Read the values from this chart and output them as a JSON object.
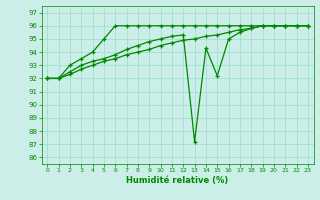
{
  "title": "",
  "xlabel": "Humidité relative (%)",
  "ylabel": "",
  "bg_color": "#cceee8",
  "grid_color": "#99ddcc",
  "line_color": "#008800",
  "xlim": [
    -0.5,
    23.5
  ],
  "ylim": [
    85.5,
    97.5
  ],
  "yticks": [
    86,
    87,
    88,
    89,
    90,
    91,
    92,
    93,
    94,
    95,
    96,
    97
  ],
  "xticks": [
    0,
    1,
    2,
    3,
    4,
    5,
    6,
    7,
    8,
    9,
    10,
    11,
    12,
    13,
    14,
    15,
    16,
    17,
    18,
    19,
    20,
    21,
    22,
    23
  ],
  "line1_x": [
    0,
    1,
    2,
    3,
    4,
    5,
    6,
    7,
    8,
    9,
    10,
    11,
    12,
    13,
    14,
    15,
    16,
    17,
    18,
    19,
    20,
    21,
    22,
    23
  ],
  "line1_y": [
    92,
    92,
    93,
    93.5,
    94,
    95,
    96,
    96,
    96,
    96,
    96,
    96,
    96,
    96,
    96,
    96,
    96,
    96,
    96,
    96,
    96,
    96,
    96,
    96
  ],
  "line2_x": [
    0,
    1,
    2,
    3,
    4,
    5,
    6,
    7,
    8,
    9,
    10,
    11,
    12,
    13,
    14,
    15,
    16,
    17,
    18,
    19,
    20,
    21,
    22,
    23
  ],
  "line2_y": [
    92,
    92,
    92.5,
    93,
    93.3,
    93.5,
    93.8,
    94.2,
    94.5,
    94.8,
    95.0,
    95.2,
    95.3,
    87.2,
    94.3,
    92.2,
    95.0,
    95.5,
    95.8,
    96.0,
    96.0,
    96.0,
    96.0,
    96.0
  ],
  "line3_x": [
    0,
    1,
    2,
    3,
    4,
    5,
    6,
    7,
    8,
    9,
    10,
    11,
    12,
    13,
    14,
    15,
    16,
    17,
    18,
    19,
    20,
    21,
    22,
    23
  ],
  "line3_y": [
    92,
    92,
    92.3,
    92.7,
    93.0,
    93.3,
    93.5,
    93.8,
    94.0,
    94.2,
    94.5,
    94.7,
    94.9,
    95.0,
    95.2,
    95.3,
    95.5,
    95.7,
    95.8,
    96.0,
    96.0,
    96.0,
    96.0,
    96.0
  ]
}
